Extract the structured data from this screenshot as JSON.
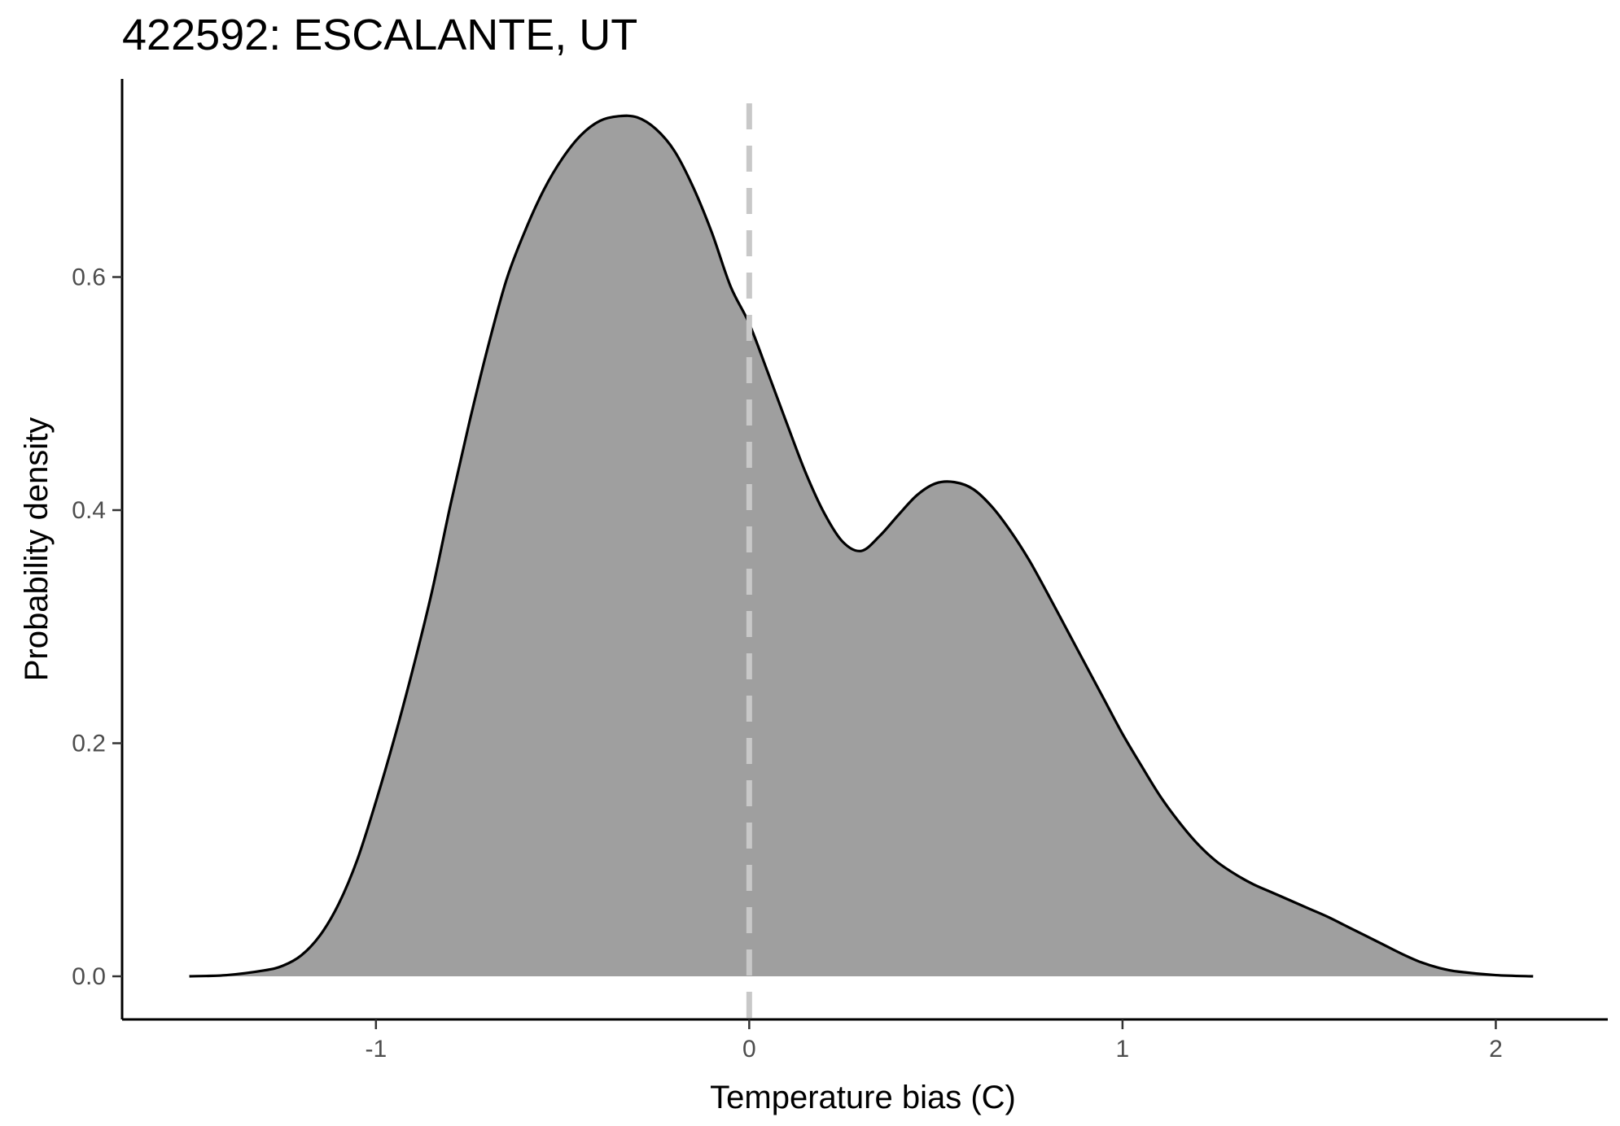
{
  "chart_data": {
    "type": "area",
    "title": "422592: ESCALANTE, UT",
    "xlabel": "Temperature bias (C)",
    "ylabel": "Probability density",
    "xlim": [
      -1.68,
      2.3
    ],
    "ylim": [
      -0.037,
      0.77
    ],
    "x_ticks": [
      -1,
      0,
      1,
      2
    ],
    "x_tick_labels": [
      "-1",
      "0",
      "1",
      "2"
    ],
    "y_ticks": [
      0.0,
      0.2,
      0.4,
      0.6
    ],
    "y_tick_labels": [
      "0.0",
      "0.2",
      "0.4",
      "0.6"
    ],
    "reference_line": {
      "x": 0,
      "style": "dashed",
      "color": "#c8c8c8"
    },
    "grid": false,
    "legend": "none",
    "fill_color": "#9f9f9f",
    "line_color": "#000000",
    "series": [
      {
        "name": "density",
        "x": [
          -1.5,
          -1.4,
          -1.3,
          -1.25,
          -1.2,
          -1.15,
          -1.1,
          -1.05,
          -1.0,
          -0.95,
          -0.9,
          -0.85,
          -0.8,
          -0.75,
          -0.7,
          -0.65,
          -0.6,
          -0.55,
          -0.5,
          -0.45,
          -0.4,
          -0.35,
          -0.3,
          -0.25,
          -0.2,
          -0.15,
          -0.1,
          -0.05,
          0.0,
          0.05,
          0.1,
          0.15,
          0.2,
          0.25,
          0.3,
          0.35,
          0.4,
          0.45,
          0.5,
          0.55,
          0.6,
          0.65,
          0.7,
          0.75,
          0.8,
          0.85,
          0.9,
          0.95,
          1.0,
          1.05,
          1.1,
          1.15,
          1.2,
          1.25,
          1.3,
          1.35,
          1.4,
          1.45,
          1.5,
          1.55,
          1.6,
          1.65,
          1.7,
          1.75,
          1.8,
          1.85,
          1.9,
          2.0,
          2.1
        ],
        "y": [
          0.0,
          0.001,
          0.005,
          0.009,
          0.018,
          0.035,
          0.062,
          0.1,
          0.15,
          0.205,
          0.265,
          0.33,
          0.405,
          0.475,
          0.54,
          0.598,
          0.64,
          0.675,
          0.702,
          0.722,
          0.734,
          0.738,
          0.737,
          0.727,
          0.708,
          0.677,
          0.638,
          0.592,
          0.56,
          0.518,
          0.475,
          0.433,
          0.398,
          0.373,
          0.365,
          0.378,
          0.396,
          0.413,
          0.423,
          0.424,
          0.418,
          0.403,
          0.382,
          0.357,
          0.328,
          0.298,
          0.268,
          0.238,
          0.208,
          0.181,
          0.155,
          0.133,
          0.114,
          0.099,
          0.088,
          0.079,
          0.072,
          0.065,
          0.058,
          0.051,
          0.043,
          0.035,
          0.027,
          0.019,
          0.012,
          0.007,
          0.004,
          0.001,
          0.0
        ]
      }
    ]
  }
}
